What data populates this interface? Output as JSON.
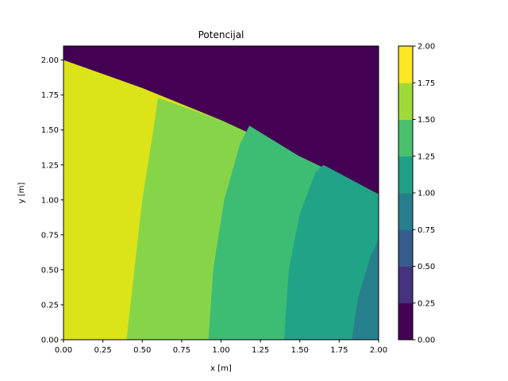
{
  "chart_data": {
    "type": "contourf",
    "title": "Potencijal",
    "xlabel": "x [m]",
    "ylabel": "y [m]",
    "xlim": [
      0,
      2.0
    ],
    "ylim": [
      0,
      2.1
    ],
    "xticks": [
      "0.00",
      "0.25",
      "0.50",
      "0.75",
      "1.00",
      "1.25",
      "1.50",
      "1.75",
      "2.00"
    ],
    "yticks": [
      "0.00",
      "0.25",
      "0.50",
      "0.75",
      "1.00",
      "1.25",
      "1.50",
      "1.75",
      "2.00"
    ],
    "colorbar": {
      "levels": [
        0.0,
        0.25,
        0.5,
        0.75,
        1.0,
        1.25,
        1.5,
        1.75,
        2.0
      ],
      "tick_labels": [
        "0.00",
        "0.25",
        "0.50",
        "0.75",
        "1.00",
        "1.25",
        "1.50",
        "1.75",
        "2.00"
      ],
      "colors": [
        "#440154",
        "#46327e",
        "#365c8d",
        "#277f8e",
        "#1fa187",
        "#4ac16d",
        "#a0da39",
        "#fde725"
      ]
    },
    "region_boundary": {
      "description_points": [
        [
          0.0,
          2.0
        ],
        [
          0.5,
          1.8
        ],
        [
          1.0,
          1.57
        ],
        [
          1.5,
          1.31
        ],
        [
          2.0,
          1.04
        ]
      ]
    },
    "contour_lines": [
      {
        "level": 1.75,
        "points": [
          [
            0.4,
            0.0
          ],
          [
            0.45,
            0.5
          ],
          [
            0.5,
            1.0
          ],
          [
            0.57,
            1.5
          ],
          [
            0.6,
            1.73
          ]
        ]
      },
      {
        "level": 1.5,
        "points": [
          [
            0.92,
            0.0
          ],
          [
            0.95,
            0.5
          ],
          [
            1.02,
            1.0
          ],
          [
            1.12,
            1.4
          ],
          [
            1.18,
            1.53
          ]
        ]
      },
      {
        "level": 1.25,
        "points": [
          [
            1.4,
            0.0
          ],
          [
            1.43,
            0.5
          ],
          [
            1.5,
            0.9
          ],
          [
            1.6,
            1.2
          ],
          [
            1.65,
            1.25
          ]
        ]
      },
      {
        "level": 1.0,
        "points": [
          [
            1.83,
            0.0
          ],
          [
            1.87,
            0.3
          ],
          [
            1.95,
            0.6
          ],
          [
            2.0,
            0.72
          ]
        ]
      },
      {
        "level": 0.75,
        "points": [
          [
            1.99,
            0.0
          ],
          [
            2.0,
            0.03
          ]
        ]
      }
    ],
    "band_colors": {
      "outside": "#440154",
      "band_175_200": "#dce319",
      "band_150_175": "#86d549",
      "band_125_150": "#3dbc74",
      "band_100_125": "#20a386",
      "band_075_100": "#27808e",
      "band_050_075": "#365c8d"
    }
  }
}
